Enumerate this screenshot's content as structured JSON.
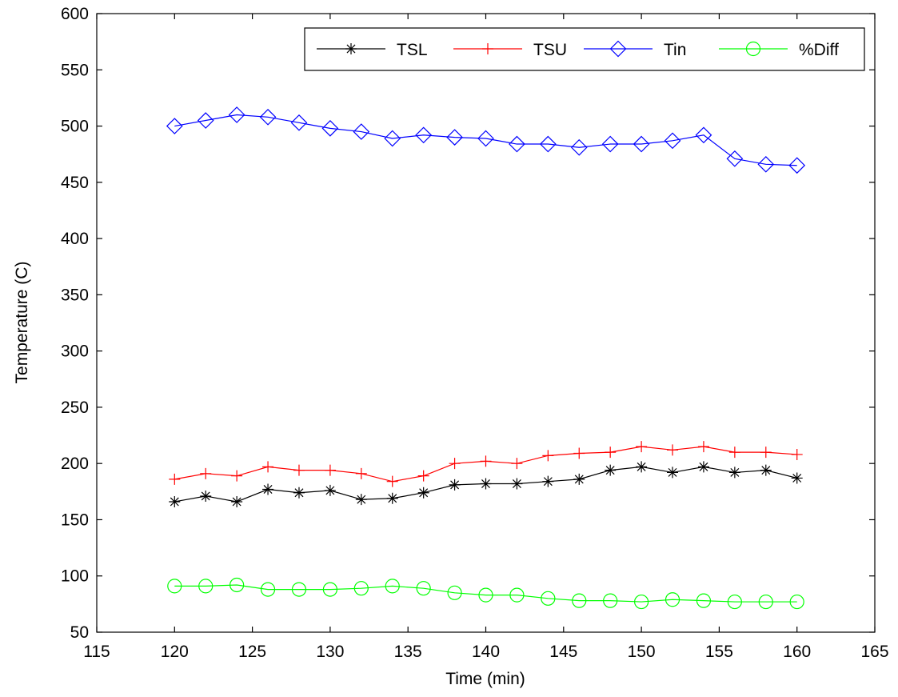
{
  "chart_data": {
    "type": "line",
    "title": "",
    "xlabel": "Time (min)",
    "ylabel": "Temperature (C)",
    "xlim": [
      115,
      165
    ],
    "ylim": [
      50,
      600
    ],
    "xticks": [
      115,
      120,
      125,
      130,
      135,
      140,
      145,
      150,
      155,
      160,
      165
    ],
    "yticks": [
      50,
      100,
      150,
      200,
      250,
      300,
      350,
      400,
      450,
      500,
      550,
      600
    ],
    "grid": false,
    "legend_placement": "top-right",
    "x": [
      120,
      122,
      124,
      126,
      128,
      130,
      132,
      134,
      136,
      138,
      140,
      142,
      144,
      146,
      148,
      150,
      152,
      154,
      156,
      158,
      160
    ],
    "series": [
      {
        "name": "TSL",
        "color": "#000000",
        "marker": "asterisk",
        "values": [
          166,
          171,
          166,
          177,
          174,
          176,
          168,
          169,
          174,
          181,
          182,
          182,
          184,
          186,
          194,
          197,
          192,
          197,
          192,
          194,
          187
        ]
      },
      {
        "name": "TSU",
        "color": "#ff0000",
        "marker": "plus",
        "values": [
          186,
          191,
          189,
          197,
          194,
          194,
          191,
          184,
          189,
          200,
          202,
          200,
          207,
          209,
          210,
          215,
          212,
          215,
          210,
          210,
          208
        ]
      },
      {
        "name": "Tin",
        "color": "#0000ff",
        "marker": "diamond",
        "values": [
          500,
          505,
          510,
          508,
          503,
          498,
          495,
          489,
          492,
          490,
          489,
          484,
          484,
          481,
          484,
          484,
          487,
          492,
          471,
          466,
          465
        ]
      },
      {
        "name": "%Diff",
        "color": "#00ff00",
        "marker": "circle",
        "values": [
          91,
          91,
          92,
          88,
          88,
          88,
          89,
          91,
          89,
          85,
          83,
          83,
          80,
          78,
          78,
          77,
          79,
          78,
          77,
          77,
          77
        ]
      }
    ]
  }
}
